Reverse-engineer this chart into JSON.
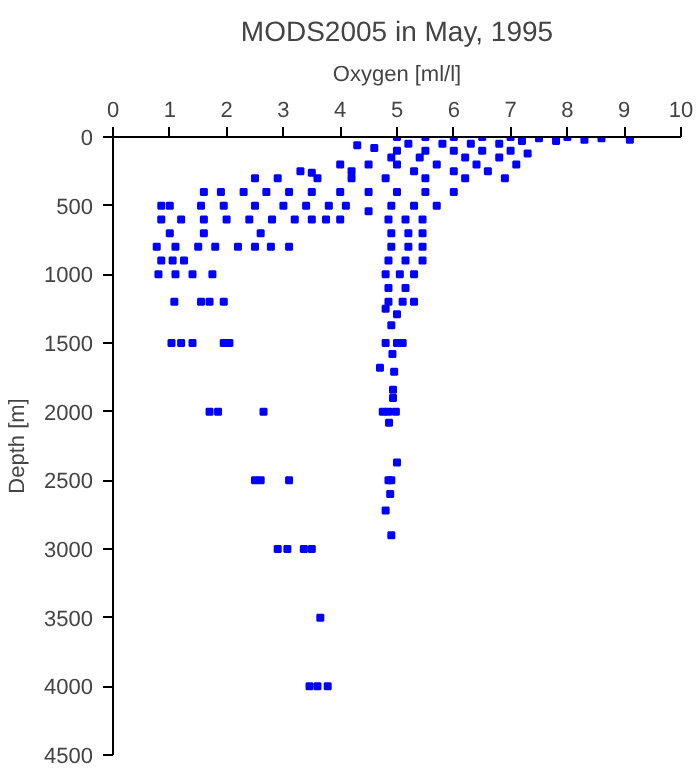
{
  "chart_data": {
    "type": "scatter",
    "title": "MODS2005 in May, 1995",
    "xlabel": "Oxygen [ml/l]",
    "ylabel": "Depth [m]",
    "xlim": [
      0,
      10
    ],
    "xticks": [
      0,
      1,
      2,
      3,
      4,
      5,
      6,
      7,
      8,
      9,
      10
    ],
    "ylim": [
      4500,
      0
    ],
    "yticks": [
      0,
      500,
      1000,
      1500,
      2000,
      2500,
      3000,
      3500,
      4000,
      4500
    ],
    "grid": false,
    "marker": "square",
    "series": [
      {
        "color": "#0000ff",
        "x": [
          5.0,
          5.5,
          6.0,
          6.5,
          7.0,
          7.5,
          8.0,
          8.3,
          8.6,
          9.1,
          7.8,
          7.2,
          5.2,
          5.8,
          6.3,
          6.8,
          4.3,
          4.6,
          5.0,
          5.5,
          6.0,
          6.5,
          7.0,
          7.3,
          4.9,
          5.4,
          6.2,
          6.8,
          4.0,
          4.5,
          5.0,
          5.7,
          6.4,
          7.1,
          4.2,
          5.3,
          6.0,
          6.6,
          3.3,
          3.5,
          2.5,
          2.9,
          3.6,
          4.2,
          4.8,
          5.5,
          6.2,
          6.9,
          1.6,
          1.9,
          2.3,
          2.7,
          3.1,
          3.5,
          4.0,
          4.5,
          5.0,
          5.5,
          6.0,
          0.85,
          1.0,
          1.55,
          1.95,
          2.5,
          3.0,
          3.4,
          3.8,
          4.1,
          4.5,
          4.9,
          5.3,
          5.7,
          0.85,
          1.2,
          1.6,
          2.0,
          2.4,
          2.8,
          3.2,
          3.5,
          3.75,
          4.0,
          4.85,
          5.15,
          5.45,
          1.0,
          1.6,
          2.6,
          4.9,
          5.2,
          5.45,
          0.77,
          1.1,
          1.5,
          1.8,
          2.2,
          2.5,
          2.78,
          3.1,
          4.9,
          5.2,
          5.45,
          0.85,
          1.05,
          1.25,
          4.85,
          5.15,
          5.45,
          0.8,
          1.1,
          1.4,
          1.75,
          4.8,
          5.05,
          5.3,
          4.85,
          5.15,
          1.08,
          1.55,
          1.7,
          1.95,
          4.85,
          5.1,
          5.3,
          5.0,
          4.9,
          4.8,
          1.03,
          1.2,
          1.4,
          1.95,
          2.05,
          4.8,
          5.0,
          5.1,
          4.92,
          4.7,
          4.95,
          4.93,
          4.93,
          1.7,
          1.85,
          2.65,
          4.75,
          4.85,
          4.98,
          4.86,
          5.0,
          2.5,
          2.6,
          3.1,
          4.85,
          4.9,
          4.88,
          4.8,
          4.9,
          2.9,
          3.07,
          3.36,
          3.5,
          3.65,
          3.46,
          3.6,
          3.78
        ],
        "values": [
          0,
          0,
          0,
          0,
          0,
          10,
          0,
          20,
          10,
          20,
          30,
          30,
          50,
          50,
          50,
          50,
          60,
          80,
          100,
          100,
          100,
          100,
          100,
          120,
          150,
          150,
          150,
          150,
          200,
          200,
          200,
          200,
          200,
          200,
          250,
          250,
          250,
          250,
          250,
          260,
          300,
          300,
          300,
          300,
          300,
          300,
          300,
          300,
          400,
          400,
          400,
          400,
          400,
          400,
          400,
          400,
          400,
          400,
          400,
          500,
          500,
          500,
          500,
          500,
          500,
          500,
          500,
          500,
          540,
          500,
          500,
          500,
          600,
          600,
          600,
          600,
          600,
          600,
          600,
          600,
          600,
          600,
          600,
          600,
          600,
          700,
          700,
          700,
          700,
          700,
          700,
          800,
          800,
          800,
          800,
          800,
          800,
          800,
          800,
          800,
          800,
          800,
          900,
          900,
          900,
          900,
          900,
          900,
          1000,
          1000,
          1000,
          1000,
          1000,
          1000,
          1000,
          1100,
          1100,
          1200,
          1200,
          1200,
          1200,
          1200,
          1200,
          1200,
          1290,
          1370,
          1250,
          1500,
          1500,
          1500,
          1500,
          1500,
          1500,
          1500,
          1500,
          1580,
          1680,
          1710,
          1840,
          1900,
          2000,
          2000,
          2000,
          2000,
          2000,
          2000,
          2080,
          2370,
          2500,
          2500,
          2500,
          2500,
          2500,
          2600,
          2720,
          2900,
          3000,
          3000,
          3000,
          3000,
          3500,
          4000,
          4000,
          4000
        ]
      }
    ]
  }
}
